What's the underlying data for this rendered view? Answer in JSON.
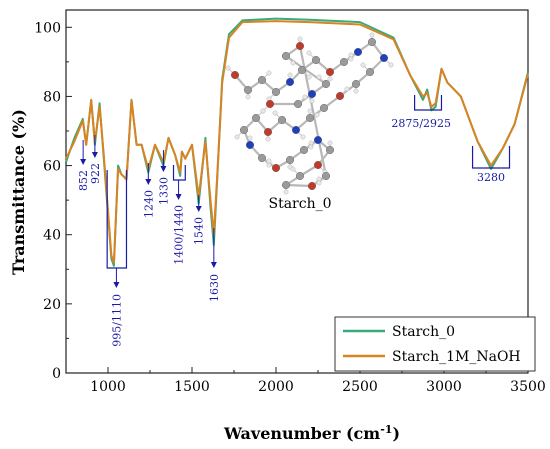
{
  "chart_data": {
    "type": "line",
    "xlabel": "Wavenumber (cm",
    "xlabel_sup": "-1",
    "xlabel_close": ")",
    "ylabel": "Transmittance (%)",
    "xlim": [
      750,
      3500
    ],
    "ylim": [
      0,
      105
    ],
    "x_ticks": [
      1000,
      1500,
      2000,
      2500,
      3000,
      3500
    ],
    "y_ticks": [
      0,
      20,
      40,
      60,
      80,
      100
    ],
    "grid": false,
    "legend_position": "bottom-right",
    "series": [
      {
        "name": "Starch_0",
        "color": "#3aaa7a",
        "points": [
          [
            750,
            61
          ],
          [
            800,
            68
          ],
          [
            850,
            73.5
          ],
          [
            870,
            66
          ],
          [
            900,
            79
          ],
          [
            922,
            66
          ],
          [
            950,
            78
          ],
          [
            975,
            62
          ],
          [
            995,
            49
          ],
          [
            1020,
            33
          ],
          [
            1035,
            31
          ],
          [
            1060,
            60
          ],
          [
            1080,
            57.5
          ],
          [
            1110,
            56
          ],
          [
            1140,
            79
          ],
          [
            1170,
            66
          ],
          [
            1200,
            66
          ],
          [
            1240,
            58
          ],
          [
            1280,
            66
          ],
          [
            1330,
            60
          ],
          [
            1360,
            68
          ],
          [
            1400,
            63
          ],
          [
            1430,
            57
          ],
          [
            1440,
            64
          ],
          [
            1460,
            62
          ],
          [
            1500,
            66
          ],
          [
            1540,
            49
          ],
          [
            1580,
            68
          ],
          [
            1610,
            48
          ],
          [
            1630,
            37
          ],
          [
            1650,
            56
          ],
          [
            1680,
            85
          ],
          [
            1720,
            98
          ],
          [
            1800,
            102
          ],
          [
            2000,
            102.5
          ],
          [
            2200,
            102.2
          ],
          [
            2500,
            101.5
          ],
          [
            2700,
            97
          ],
          [
            2800,
            86
          ],
          [
            2875,
            79
          ],
          [
            2900,
            82
          ],
          [
            2925,
            76
          ],
          [
            2950,
            77
          ],
          [
            2985,
            88
          ],
          [
            3020,
            84
          ],
          [
            3100,
            80
          ],
          [
            3200,
            67
          ],
          [
            3280,
            59
          ],
          [
            3350,
            65
          ],
          [
            3420,
            72
          ],
          [
            3500,
            87
          ]
        ]
      },
      {
        "name": "Starch_1M_NaOH",
        "color": "#d98322",
        "points": [
          [
            750,
            62
          ],
          [
            800,
            67
          ],
          [
            850,
            73
          ],
          [
            870,
            66
          ],
          [
            900,
            79
          ],
          [
            922,
            67
          ],
          [
            950,
            77
          ],
          [
            975,
            63
          ],
          [
            995,
            50
          ],
          [
            1020,
            34
          ],
          [
            1035,
            32
          ],
          [
            1060,
            59
          ],
          [
            1080,
            57.5
          ],
          [
            1110,
            56
          ],
          [
            1140,
            79
          ],
          [
            1170,
            66
          ],
          [
            1200,
            66
          ],
          [
            1240,
            59
          ],
          [
            1280,
            66
          ],
          [
            1330,
            61
          ],
          [
            1360,
            68
          ],
          [
            1400,
            63
          ],
          [
            1430,
            58
          ],
          [
            1440,
            64
          ],
          [
            1460,
            62
          ],
          [
            1500,
            66
          ],
          [
            1540,
            51
          ],
          [
            1580,
            67
          ],
          [
            1610,
            50
          ],
          [
            1630,
            40
          ],
          [
            1650,
            57
          ],
          [
            1680,
            84
          ],
          [
            1720,
            97
          ],
          [
            1800,
            101.5
          ],
          [
            2000,
            101.8
          ],
          [
            2200,
            101.5
          ],
          [
            2500,
            100.8
          ],
          [
            2700,
            96.5
          ],
          [
            2800,
            86
          ],
          [
            2875,
            80
          ],
          [
            2900,
            81
          ],
          [
            2925,
            77
          ],
          [
            2950,
            78
          ],
          [
            2985,
            88
          ],
          [
            3020,
            84
          ],
          [
            3100,
            80
          ],
          [
            3200,
            67
          ],
          [
            3280,
            60
          ],
          [
            3350,
            65
          ],
          [
            3420,
            72
          ],
          [
            3500,
            86.5
          ]
        ]
      }
    ],
    "annotations": [
      {
        "label": "852",
        "x": 852
      },
      {
        "label": "922",
        "x": 922
      },
      {
        "label": "995/1110",
        "x": 1050
      },
      {
        "label": "1240",
        "x": 1240
      },
      {
        "label": "1330",
        "x": 1330
      },
      {
        "label": "1400/1440",
        "x": 1420
      },
      {
        "label": "1540",
        "x": 1540
      },
      {
        "label": "1630",
        "x": 1630
      },
      {
        "label": "2875/2925",
        "x": 2900
      },
      {
        "label": "3280",
        "x": 3280
      }
    ],
    "inset_label": "Starch_0"
  }
}
